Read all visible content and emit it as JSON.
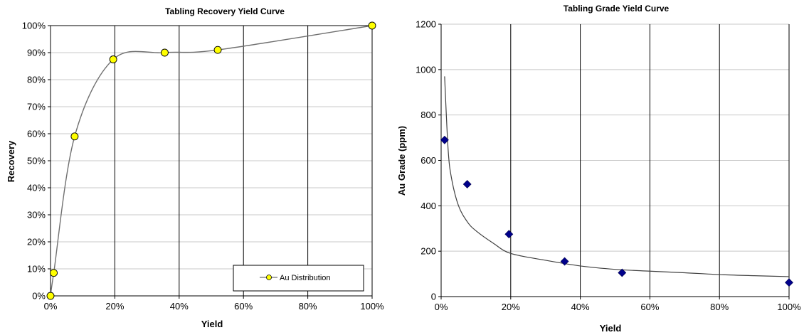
{
  "chart_data": [
    {
      "type": "line",
      "title": "Tabling Recovery Yield Curve",
      "xlabel": "Yield",
      "ylabel": "Recovery",
      "xlim": [
        0,
        100
      ],
      "ylim": [
        0,
        100
      ],
      "x_ticks": [
        "0%",
        "20%",
        "40%",
        "60%",
        "80%",
        "100%"
      ],
      "y_ticks": [
        "0%",
        "10%",
        "20%",
        "30%",
        "40%",
        "50%",
        "60%",
        "70%",
        "80%",
        "90%",
        "100%"
      ],
      "grid": "vertical",
      "legend": "bottom-right",
      "series": [
        {
          "name": "Au Distribution",
          "color": "#ffff00",
          "x": [
            0,
            1,
            7.5,
            19.5,
            35.5,
            52,
            100
          ],
          "y": [
            0,
            8.5,
            59,
            87.5,
            90,
            91,
            100
          ]
        }
      ]
    },
    {
      "type": "scatter",
      "title": "Tabling Grade Yield Curve",
      "xlabel": "Yield",
      "ylabel": "Au Grade (ppm)",
      "xlim": [
        0,
        100
      ],
      "ylim": [
        0,
        1200
      ],
      "x_ticks": [
        "0%",
        "20%",
        "40%",
        "60%",
        "80%",
        "100%"
      ],
      "y_ticks": [
        "0",
        "200",
        "400",
        "600",
        "800",
        "1000",
        "1200"
      ],
      "grid": "both",
      "marker_color": "#00008b",
      "points": {
        "x": [
          1,
          7.5,
          19.5,
          35.5,
          52,
          100
        ],
        "y": [
          690,
          495,
          275,
          155,
          105,
          62
        ]
      },
      "trendline": {
        "type": "power",
        "x": [
          1,
          2,
          3,
          5,
          7.5,
          10,
          15,
          20,
          30,
          40,
          50,
          60,
          70,
          80,
          90,
          100
        ],
        "y": [
          970,
          650,
          520,
          400,
          330,
          290,
          235,
          190,
          160,
          135,
          120,
          112,
          105,
          97,
          92,
          88
        ]
      }
    }
  ]
}
